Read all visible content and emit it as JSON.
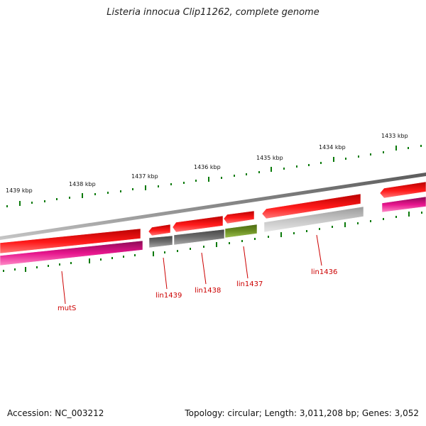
{
  "title": "Listeria innocua Clip11262, complete genome",
  "footer": {
    "accession": "Accession: NC_003212",
    "stats": "Topology: circular; Length: 3,011,208 bp; Genes: 3,052"
  },
  "ticks": [
    "1439 kbp",
    "1438 kbp",
    "1437 kbp",
    "1436 kbp",
    "1435 kbp",
    "1434 kbp",
    "1433 kbp"
  ],
  "genes": [
    "mutS",
    "lin1439",
    "lin1438",
    "lin1437",
    "lin1436"
  ],
  "colors": {
    "backbone": "#7f7f7f",
    "forward": "#e60000",
    "reverse_pink": "#e6148c",
    "gray_dark": "#6e6e6e",
    "gray_light": "#bdbdbd",
    "olive": "#6b8e23",
    "tick": "#0a7a0a",
    "label": "#cc0000"
  }
}
